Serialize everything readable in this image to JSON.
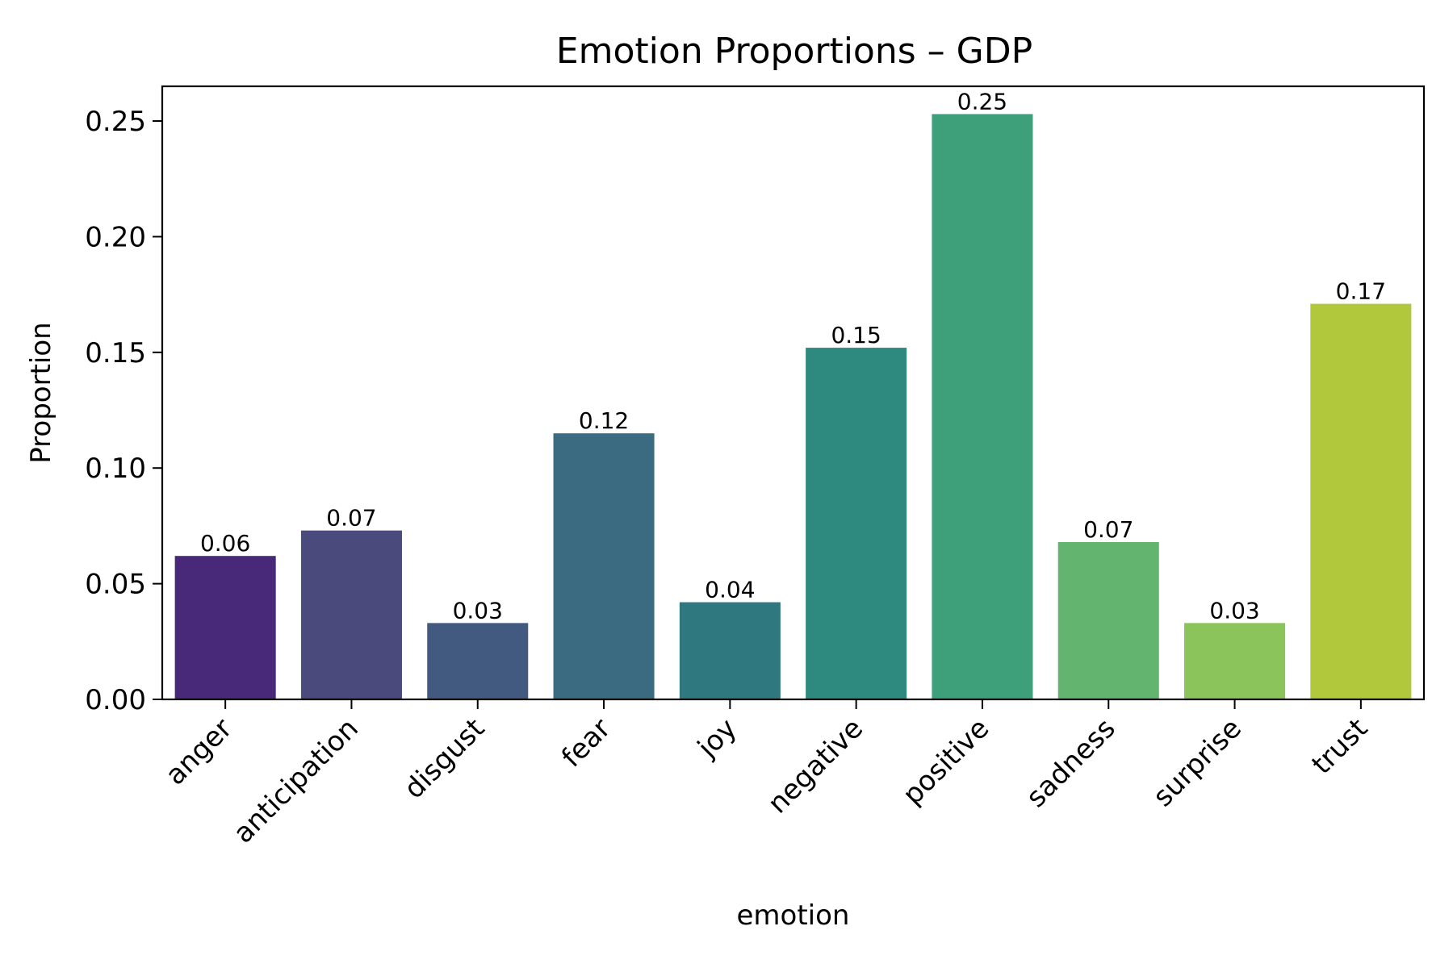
{
  "chart_data": {
    "type": "bar",
    "title": "Emotion Proportions – GDP",
    "xlabel": "emotion",
    "ylabel": "Proportion",
    "categories": [
      "anger",
      "anticipation",
      "disgust",
      "fear",
      "joy",
      "negative",
      "positive",
      "sadness",
      "surprise",
      "trust"
    ],
    "values": [
      0.062,
      0.073,
      0.033,
      0.115,
      0.042,
      0.152,
      0.253,
      0.068,
      0.033,
      0.171
    ],
    "data_labels": [
      "0.06",
      "0.07",
      "0.03",
      "0.12",
      "0.04",
      "0.15",
      "0.25",
      "0.07",
      "0.03",
      "0.17"
    ],
    "colors": [
      "#482878",
      "#4a4a7c",
      "#435a80",
      "#3b6b80",
      "#307880",
      "#2e8a7e",
      "#3ea07a",
      "#62b46e",
      "#8bc45a",
      "#b1c83c"
    ],
    "ylim": [
      0,
      0.265
    ],
    "yticks": [
      0.0,
      0.05,
      0.1,
      0.15,
      0.2,
      0.25
    ],
    "ytick_labels": [
      "0.00",
      "0.05",
      "0.10",
      "0.15",
      "0.20",
      "0.25"
    ],
    "grid": false,
    "legend": "none"
  }
}
